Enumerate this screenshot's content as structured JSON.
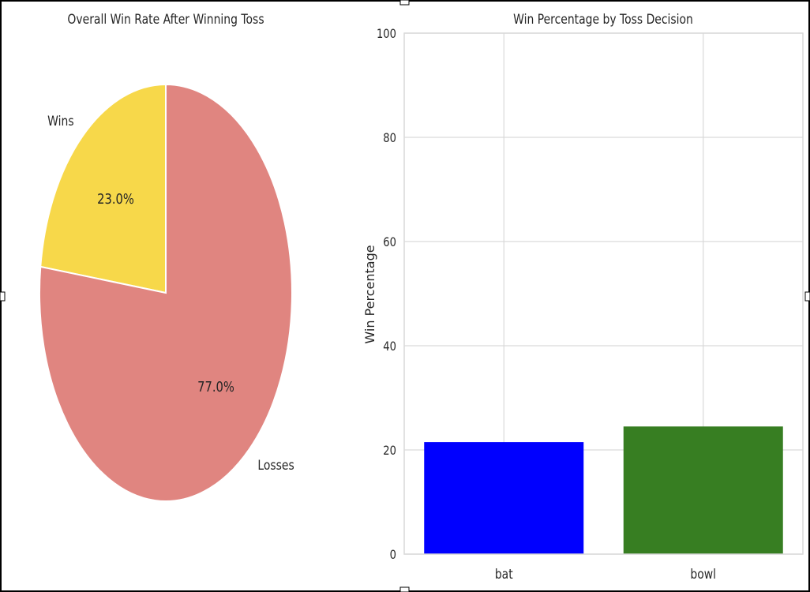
{
  "chart_data": [
    {
      "type": "pie",
      "title": "Overall Win Rate After Winning Toss",
      "labels": [
        "Wins",
        "Losses"
      ],
      "values": [
        23.0,
        77.0
      ],
      "value_labels": [
        "23.0%",
        "77.0%"
      ],
      "colors": [
        "#f7d84a",
        "#e08580"
      ]
    },
    {
      "type": "bar",
      "title": "Win Percentage by Toss Decision",
      "xlabel": "",
      "ylabel": "Win Percentage",
      "categories": [
        "bat",
        "bowl"
      ],
      "values": [
        21.5,
        24.5
      ],
      "colors": [
        "#0000ff",
        "#377e22"
      ],
      "ylim": [
        0,
        100
      ],
      "yticks": [
        0,
        20,
        40,
        60,
        80,
        100
      ],
      "grid": true
    }
  ]
}
